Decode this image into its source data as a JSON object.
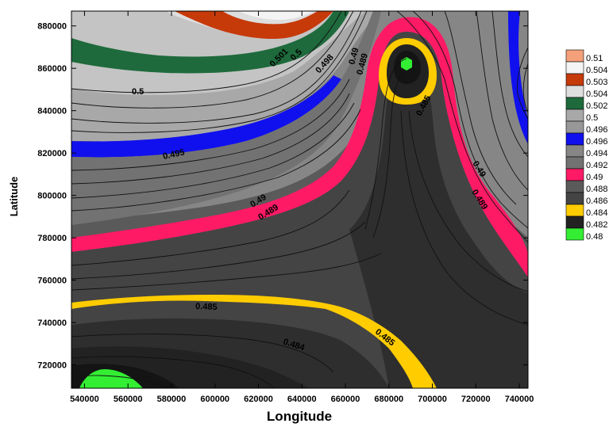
{
  "chart_data": {
    "type": "contour",
    "xlabel": "Longitude",
    "ylabel": "Latitude",
    "xlim": [
      534000,
      744000
    ],
    "ylim": [
      709000,
      887000
    ],
    "x_ticks": [
      540000,
      560000,
      580000,
      600000,
      620000,
      640000,
      660000,
      680000,
      700000,
      720000,
      740000
    ],
    "x_tick_labels": [
      "540000",
      "560000",
      "580000",
      "600000",
      "620000",
      "640000",
      "660000",
      "680000",
      "700000",
      "720000",
      "740000"
    ],
    "y_ticks": [
      720000,
      740000,
      760000,
      780000,
      800000,
      820000,
      840000,
      860000,
      880000
    ],
    "y_tick_labels": [
      "720000",
      "740000",
      "760000",
      "780000",
      "800000",
      "820000",
      "840000",
      "860000",
      "880000"
    ],
    "grid": false,
    "legend_position": "right",
    "contour_labels": [
      "0.5",
      "0.501",
      "0.5",
      "0.498",
      "0.495",
      "0.49",
      "0.489",
      "0.49",
      "0.489",
      "0.485",
      "0.49",
      "0.489",
      "0.485",
      "0.484",
      "0.485"
    ],
    "legend": [
      {
        "label": "0.51",
        "color": "#f4a07a"
      },
      {
        "label": "0.504",
        "color": "#f4f4f4"
      },
      {
        "label": "0.503",
        "color": "#c63a0a"
      },
      {
        "label": "0.504",
        "color": "#dedede"
      },
      {
        "label": "0.502",
        "color": "#1e6a3c"
      },
      {
        "label": "0.5",
        "color": "#a8a8a8"
      },
      {
        "label": "0.496",
        "color": "#989898"
      },
      {
        "label": "0.496",
        "color": "#1010ee"
      },
      {
        "label": "0.494",
        "color": "#868686"
      },
      {
        "label": "0.492",
        "color": "#727272"
      },
      {
        "label": "0.49",
        "color": "#ff1a66"
      },
      {
        "label": "0.488",
        "color": "#5a5a5a"
      },
      {
        "label": "0.486",
        "color": "#444444"
      },
      {
        "label": "0.484",
        "color": "#ffcc00"
      },
      {
        "label": "0.482",
        "color": "#222222"
      },
      {
        "label": "0.48",
        "color": "#33ee33"
      }
    ]
  },
  "colors": {
    "band_lightest": "#f4f4f4",
    "band_light": "#dedede",
    "band_mid_light": "#c4c4c4",
    "band_mid": "#a8a8a8",
    "band_mid2": "#989898",
    "band_mid_dark": "#868686",
    "band_darker": "#727272",
    "band_dark": "#5a5a5a",
    "band_darker2": "#444444",
    "band_darkest": "#2e2e2e",
    "band_black": "#222222",
    "band_core": "#141414",
    "orange_red": "#c63a0a",
    "green_dark": "#1e6a3c",
    "blue": "#1010ee",
    "pink": "#ff1a66",
    "yellow": "#ffcc00",
    "lime": "#33ee33",
    "salmon": "#f4a07a"
  }
}
